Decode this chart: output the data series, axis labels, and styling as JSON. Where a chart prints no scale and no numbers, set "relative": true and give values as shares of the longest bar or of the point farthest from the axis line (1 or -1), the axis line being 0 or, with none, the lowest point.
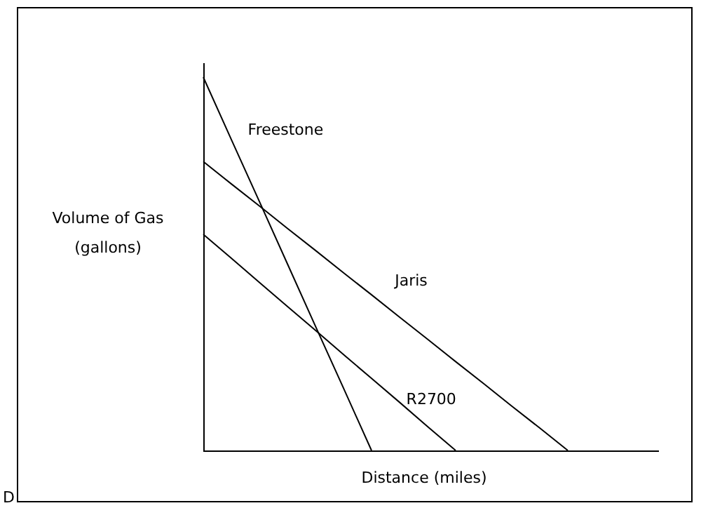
{
  "chart_data": {
    "type": "line",
    "relative": true,
    "xlabel": "Distance (miles)",
    "ylabel": "Volume of Gas\n(gallons)",
    "marker": "none",
    "line_style": "solid",
    "annotations": [
      "D"
    ],
    "categories": [
      null,
      null,
      null,
      null,
      null,
      null,
      null,
      null,
      null,
      null,
      null,
      null,
      null,
      null,
      null,
      null,
      null
    ],
    "series": [
      {
        "name": "Freestone",
        "color": "#000000",
        "values": [
          1,
          0.833,
          0.667,
          0.5,
          0.333,
          0.167,
          0,
          null,
          null,
          null,
          null,
          null,
          null,
          null,
          null,
          null,
          null
        ]
      },
      {
        "name": "Jaris",
        "color": "#000000",
        "values": [
          0.774,
          0.714,
          0.655,
          0.595,
          0.536,
          0.476,
          0.417,
          0.357,
          0.298,
          0.238,
          0.179,
          0.119,
          0.06,
          0,
          null,
          null,
          null
        ]
      },
      {
        "name": "R2700",
        "color": "#000000",
        "values": [
          0.579,
          0.515,
          0.45,
          0.386,
          0.322,
          0.257,
          0.193,
          0.129,
          0.064,
          0,
          null,
          null,
          null,
          null,
          null,
          null,
          null
        ]
      }
    ]
  }
}
